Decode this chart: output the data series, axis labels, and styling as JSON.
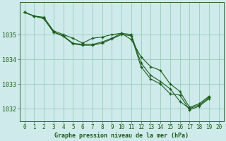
{
  "background_color": "#ceeaea",
  "grid_color": "#99ccbb",
  "line_color": "#1a5c1a",
  "xlabel": "Graphe pression niveau de la mer (hPa)",
  "xlim": [
    -0.5,
    20.5
  ],
  "ylim": [
    1031.5,
    1036.3
  ],
  "xticks": [
    0,
    1,
    2,
    3,
    4,
    5,
    6,
    7,
    8,
    9,
    10,
    11,
    12,
    13,
    14,
    15,
    16,
    17,
    18,
    19,
    20
  ],
  "yticks": [
    1032,
    1033,
    1034,
    1035
  ],
  "series": [
    [
      1035.9,
      1035.75,
      1035.7,
      1035.15,
      1035.0,
      1034.85,
      1034.65,
      1034.85,
      1034.9,
      1035.0,
      1035.05,
      1034.8,
      1034.1,
      1033.7,
      1033.55,
      1033.0,
      1032.7,
      1032.05,
      1032.2,
      1032.5
    ],
    [
      1035.9,
      1035.75,
      1035.65,
      1035.1,
      1034.95,
      1034.65,
      1034.6,
      1034.6,
      1034.7,
      1034.85,
      1035.05,
      1035.0,
      1033.85,
      1033.35,
      1033.1,
      1032.8,
      1032.3,
      1032.0,
      1032.15,
      1032.45
    ],
    [
      1035.9,
      1035.75,
      1035.65,
      1035.1,
      1034.93,
      1034.62,
      1034.57,
      1034.57,
      1034.65,
      1034.82,
      1035.0,
      1034.95,
      1033.7,
      1033.2,
      1033.0,
      1032.6,
      1032.55,
      1031.95,
      1032.1,
      1032.4
    ]
  ]
}
